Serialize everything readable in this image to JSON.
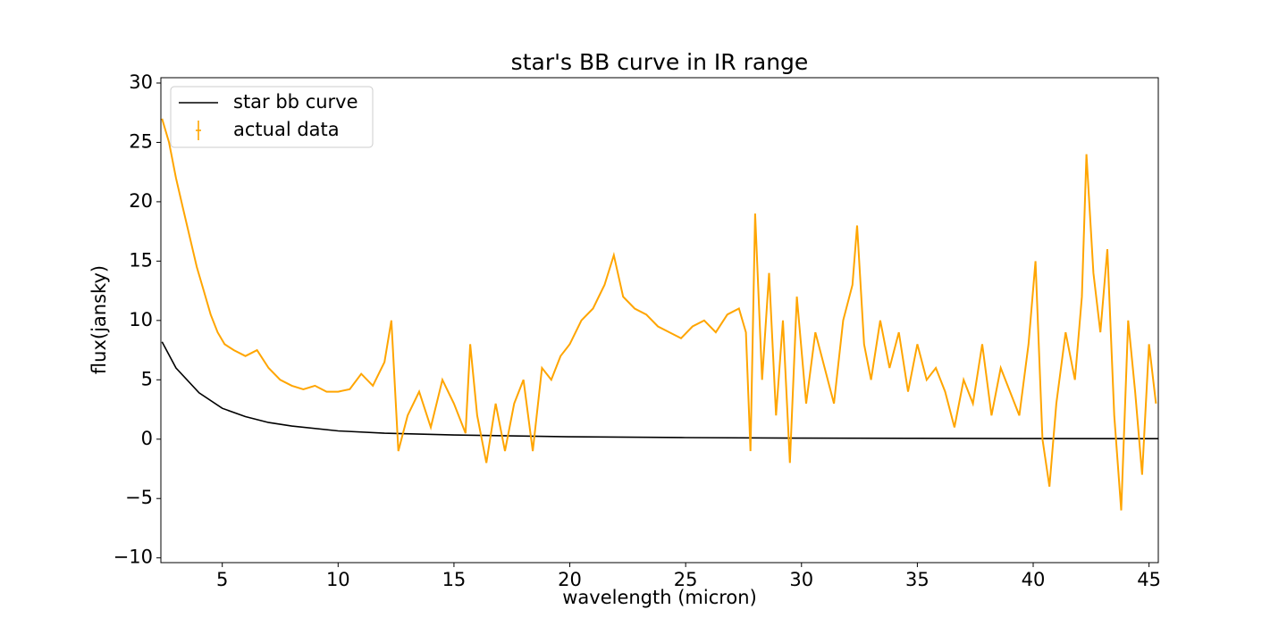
{
  "chart_data": {
    "type": "line",
    "title": "star's BB curve in IR range",
    "xlabel": "wavelength (micron)",
    "ylabel": "flux(jansky)",
    "xlim": [
      2.35,
      45.4
    ],
    "ylim": [
      -10.4,
      30.45
    ],
    "xticks": [
      5,
      10,
      15,
      20,
      25,
      30,
      35,
      40,
      45
    ],
    "yticks": [
      {
        "value": -10,
        "label": "−10"
      },
      {
        "value": -5,
        "label": "−5"
      },
      0,
      5,
      10,
      15,
      20,
      25,
      30
    ],
    "legend": "upper left",
    "series": [
      {
        "name": "star bb curve",
        "color": "#000000",
        "x": [
          2.4,
          3,
          4,
          5,
          6,
          7,
          8,
          10,
          12,
          15,
          20,
          25,
          30,
          35,
          40,
          45.4
        ],
        "values": [
          8.2,
          6,
          3.9,
          2.6,
          1.9,
          1.4,
          1.1,
          0.7,
          0.5,
          0.35,
          0.2,
          0.13,
          0.09,
          0.07,
          0.05,
          0.04
        ]
      },
      {
        "name": "actual data",
        "color": "#ffa500",
        "x": [
          2.4,
          2.7,
          3.0,
          3.3,
          3.6,
          3.9,
          4.2,
          4.5,
          4.8,
          5.1,
          5.5,
          6.0,
          6.5,
          7.0,
          7.5,
          8.0,
          8.5,
          9.0,
          9.5,
          10,
          10.5,
          11,
          11.5,
          12,
          12.3,
          12.6,
          13,
          13.5,
          14,
          14.5,
          15,
          15.5,
          15.7,
          16,
          16.4,
          16.8,
          17.2,
          17.6,
          18,
          18.4,
          18.8,
          19.2,
          19.6,
          20,
          20.5,
          21,
          21.5,
          21.9,
          22.3,
          22.8,
          23.3,
          23.8,
          24.3,
          24.8,
          25.3,
          25.8,
          26.3,
          26.8,
          27.3,
          27.6,
          27.8,
          28,
          28.3,
          28.6,
          28.9,
          29.2,
          29.5,
          29.8,
          30.2,
          30.6,
          31,
          31.4,
          31.8,
          32.2,
          32.4,
          32.7,
          33,
          33.4,
          33.8,
          34.2,
          34.6,
          35,
          35.4,
          35.8,
          36.2,
          36.6,
          37,
          37.4,
          37.8,
          38.2,
          38.6,
          39,
          39.4,
          39.8,
          40.1,
          40.4,
          40.7,
          41,
          41.4,
          41.8,
          42.1,
          42.3,
          42.6,
          42.9,
          43.2,
          43.5,
          43.8,
          44.1,
          44.4,
          44.7,
          45,
          45.3
        ],
        "values": [
          27,
          25,
          22,
          19.5,
          17,
          14.5,
          12.5,
          10.5,
          9,
          8,
          7.5,
          7,
          7.5,
          6,
          5,
          4.5,
          4.2,
          4.5,
          4,
          4,
          4.2,
          5.5,
          4.5,
          6.5,
          10,
          -1,
          2,
          4,
          1,
          5,
          3,
          0.5,
          8,
          2,
          -2,
          3,
          -1,
          3,
          5,
          -1,
          6,
          5,
          7,
          8,
          10,
          11,
          13,
          15.5,
          12,
          11,
          10.5,
          9.5,
          9,
          8.5,
          9.5,
          10,
          9,
          10.5,
          11,
          9,
          -1,
          19,
          5,
          14,
          2,
          10,
          -2,
          12,
          3,
          9,
          6,
          3,
          10,
          13,
          18,
          8,
          5,
          10,
          6,
          9,
          4,
          8,
          5,
          6,
          4,
          1,
          5,
          3,
          8,
          2,
          6,
          4,
          2,
          8,
          15,
          0,
          -4,
          3,
          9,
          5,
          12,
          24,
          14,
          9,
          16,
          2,
          -6,
          10,
          4,
          -3,
          8,
          3
        ]
      }
    ]
  }
}
